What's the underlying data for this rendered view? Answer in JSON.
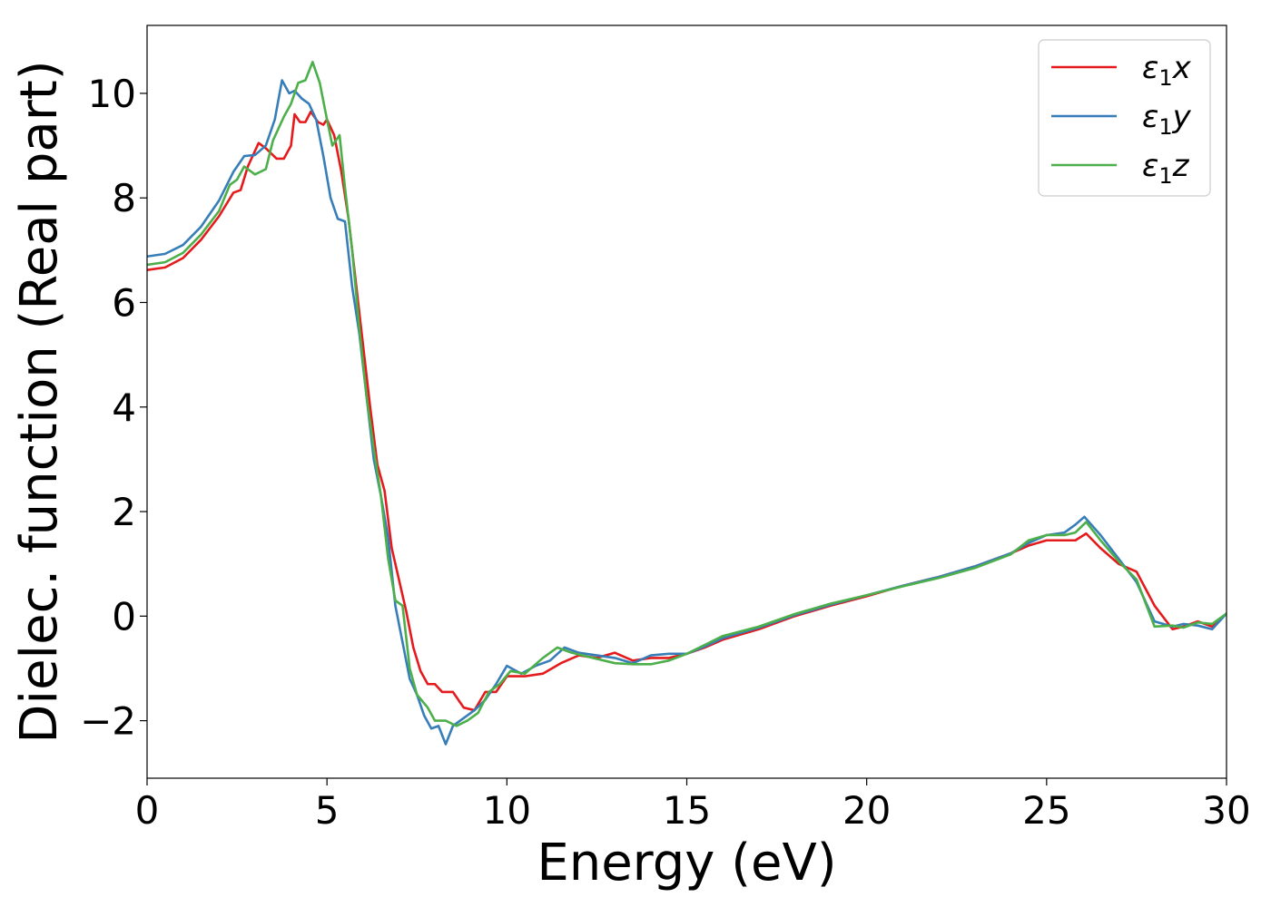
{
  "chart_data": {
    "type": "line",
    "title": "",
    "xlabel": "Energy (eV)",
    "ylabel": "Dielec. function (Real part)",
    "xlim": [
      0,
      30
    ],
    "ylim": [
      -3.1,
      11.3
    ],
    "x_ticks": [
      0,
      5,
      10,
      15,
      20,
      25,
      30
    ],
    "y_ticks": [
      -2,
      0,
      2,
      4,
      6,
      8,
      10
    ],
    "x_tick_labels": [
      "0",
      "5",
      "10",
      "15",
      "20",
      "25",
      "30"
    ],
    "y_tick_labels": [
      "−2",
      "0",
      "2",
      "4",
      "6",
      "8",
      "10"
    ],
    "grid": false,
    "legend_position": "top-right",
    "series": [
      {
        "name": "ε1x",
        "legend_main": "ε",
        "legend_sub": "1",
        "legend_tail": "x",
        "color": "#e41a1c",
        "points": [
          [
            0,
            6.62
          ],
          [
            0.5,
            6.67
          ],
          [
            1.0,
            6.85
          ],
          [
            1.5,
            7.2
          ],
          [
            2.0,
            7.65
          ],
          [
            2.4,
            8.1
          ],
          [
            2.6,
            8.15
          ],
          [
            2.8,
            8.6
          ],
          [
            3.1,
            9.05
          ],
          [
            3.3,
            8.95
          ],
          [
            3.6,
            8.75
          ],
          [
            3.8,
            8.75
          ],
          [
            4.0,
            9.0
          ],
          [
            4.1,
            9.6
          ],
          [
            4.25,
            9.45
          ],
          [
            4.4,
            9.45
          ],
          [
            4.55,
            9.65
          ],
          [
            4.75,
            9.45
          ],
          [
            4.9,
            9.4
          ],
          [
            5.0,
            9.5
          ],
          [
            5.2,
            9.2
          ],
          [
            5.4,
            8.5
          ],
          [
            5.6,
            7.6
          ],
          [
            5.8,
            6.4
          ],
          [
            6.0,
            5.2
          ],
          [
            6.2,
            4.0
          ],
          [
            6.4,
            2.9
          ],
          [
            6.6,
            2.4
          ],
          [
            6.8,
            1.3
          ],
          [
            7.0,
            0.7
          ],
          [
            7.2,
            0.1
          ],
          [
            7.4,
            -0.6
          ],
          [
            7.6,
            -1.05
          ],
          [
            7.8,
            -1.3
          ],
          [
            8.0,
            -1.3
          ],
          [
            8.2,
            -1.45
          ],
          [
            8.5,
            -1.45
          ],
          [
            8.8,
            -1.75
          ],
          [
            9.1,
            -1.8
          ],
          [
            9.4,
            -1.45
          ],
          [
            9.7,
            -1.45
          ],
          [
            10.0,
            -1.15
          ],
          [
            10.5,
            -1.15
          ],
          [
            11.0,
            -1.1
          ],
          [
            11.5,
            -0.9
          ],
          [
            12.0,
            -0.75
          ],
          [
            12.5,
            -0.8
          ],
          [
            13.0,
            -0.7
          ],
          [
            13.5,
            -0.85
          ],
          [
            14.0,
            -0.8
          ],
          [
            14.5,
            -0.8
          ],
          [
            15.0,
            -0.72
          ],
          [
            15.5,
            -0.6
          ],
          [
            16.0,
            -0.45
          ],
          [
            17.0,
            -0.25
          ],
          [
            18.0,
            0.0
          ],
          [
            19.0,
            0.2
          ],
          [
            20.0,
            0.38
          ],
          [
            21.0,
            0.58
          ],
          [
            22.0,
            0.75
          ],
          [
            23.0,
            0.95
          ],
          [
            24.0,
            1.2
          ],
          [
            24.5,
            1.35
          ],
          [
            25.0,
            1.45
          ],
          [
            25.5,
            1.45
          ],
          [
            25.8,
            1.45
          ],
          [
            26.1,
            1.58
          ],
          [
            26.5,
            1.3
          ],
          [
            27.0,
            1.0
          ],
          [
            27.5,
            0.85
          ],
          [
            28.0,
            0.2
          ],
          [
            28.5,
            -0.25
          ],
          [
            28.8,
            -0.2
          ],
          [
            29.2,
            -0.1
          ],
          [
            29.6,
            -0.2
          ],
          [
            30.0,
            0.05
          ]
        ]
      },
      {
        "name": "ε1y",
        "legend_main": "ε",
        "legend_sub": "1",
        "legend_tail": "y",
        "color": "#377eb8",
        "points": [
          [
            0,
            6.88
          ],
          [
            0.5,
            6.93
          ],
          [
            1.0,
            7.1
          ],
          [
            1.5,
            7.45
          ],
          [
            2.0,
            7.95
          ],
          [
            2.4,
            8.5
          ],
          [
            2.7,
            8.8
          ],
          [
            3.0,
            8.82
          ],
          [
            3.3,
            9.0
          ],
          [
            3.55,
            9.5
          ],
          [
            3.75,
            10.25
          ],
          [
            3.95,
            10.0
          ],
          [
            4.1,
            10.05
          ],
          [
            4.3,
            9.9
          ],
          [
            4.5,
            9.8
          ],
          [
            4.7,
            9.5
          ],
          [
            4.9,
            8.8
          ],
          [
            5.1,
            8.0
          ],
          [
            5.3,
            7.6
          ],
          [
            5.5,
            7.55
          ],
          [
            5.7,
            6.3
          ],
          [
            5.9,
            5.4
          ],
          [
            6.1,
            4.2
          ],
          [
            6.3,
            3.0
          ],
          [
            6.5,
            2.3
          ],
          [
            6.7,
            1.5
          ],
          [
            6.9,
            0.2
          ],
          [
            7.1,
            -0.5
          ],
          [
            7.3,
            -1.2
          ],
          [
            7.5,
            -1.5
          ],
          [
            7.7,
            -1.9
          ],
          [
            7.9,
            -2.15
          ],
          [
            8.1,
            -2.1
          ],
          [
            8.3,
            -2.45
          ],
          [
            8.5,
            -2.1
          ],
          [
            8.8,
            -1.95
          ],
          [
            9.1,
            -1.8
          ],
          [
            9.4,
            -1.6
          ],
          [
            9.7,
            -1.3
          ],
          [
            10.0,
            -0.95
          ],
          [
            10.4,
            -1.1
          ],
          [
            10.8,
            -0.95
          ],
          [
            11.2,
            -0.85
          ],
          [
            11.6,
            -0.6
          ],
          [
            12.0,
            -0.7
          ],
          [
            12.5,
            -0.75
          ],
          [
            13.0,
            -0.8
          ],
          [
            13.5,
            -0.9
          ],
          [
            14.0,
            -0.75
          ],
          [
            14.5,
            -0.72
          ],
          [
            15.0,
            -0.72
          ],
          [
            15.5,
            -0.58
          ],
          [
            16.0,
            -0.42
          ],
          [
            17.0,
            -0.22
          ],
          [
            18.0,
            0.02
          ],
          [
            19.0,
            0.22
          ],
          [
            20.0,
            0.4
          ],
          [
            21.0,
            0.58
          ],
          [
            22.0,
            0.75
          ],
          [
            23.0,
            0.95
          ],
          [
            24.0,
            1.2
          ],
          [
            24.5,
            1.4
          ],
          [
            25.0,
            1.55
          ],
          [
            25.5,
            1.6
          ],
          [
            25.8,
            1.75
          ],
          [
            26.05,
            1.9
          ],
          [
            26.5,
            1.55
          ],
          [
            27.0,
            1.1
          ],
          [
            27.5,
            0.65
          ],
          [
            28.0,
            -0.1
          ],
          [
            28.5,
            -0.2
          ],
          [
            28.8,
            -0.15
          ],
          [
            29.2,
            -0.18
          ],
          [
            29.6,
            -0.25
          ],
          [
            30.0,
            0.05
          ]
        ]
      },
      {
        "name": "ε1z",
        "legend_main": "ε",
        "legend_sub": "1",
        "legend_tail": "z",
        "color": "#4daf4a",
        "points": [
          [
            0,
            6.72
          ],
          [
            0.5,
            6.77
          ],
          [
            1.0,
            6.95
          ],
          [
            1.5,
            7.3
          ],
          [
            2.0,
            7.75
          ],
          [
            2.3,
            8.25
          ],
          [
            2.5,
            8.35
          ],
          [
            2.7,
            8.6
          ],
          [
            3.0,
            8.45
          ],
          [
            3.3,
            8.55
          ],
          [
            3.5,
            9.1
          ],
          [
            3.8,
            9.55
          ],
          [
            4.0,
            9.8
          ],
          [
            4.2,
            10.2
          ],
          [
            4.4,
            10.25
          ],
          [
            4.6,
            10.6
          ],
          [
            4.8,
            10.2
          ],
          [
            5.0,
            9.5
          ],
          [
            5.15,
            9.0
          ],
          [
            5.35,
            9.2
          ],
          [
            5.5,
            8.2
          ],
          [
            5.7,
            7.0
          ],
          [
            5.9,
            5.5
          ],
          [
            6.1,
            4.2
          ],
          [
            6.3,
            3.2
          ],
          [
            6.5,
            2.3
          ],
          [
            6.7,
            1.1
          ],
          [
            6.9,
            0.3
          ],
          [
            7.1,
            0.2
          ],
          [
            7.3,
            -1.0
          ],
          [
            7.5,
            -1.5
          ],
          [
            7.8,
            -1.75
          ],
          [
            8.0,
            -2.0
          ],
          [
            8.3,
            -2.0
          ],
          [
            8.6,
            -2.1
          ],
          [
            8.9,
            -2.0
          ],
          [
            9.2,
            -1.85
          ],
          [
            9.5,
            -1.45
          ],
          [
            9.8,
            -1.3
          ],
          [
            10.1,
            -1.05
          ],
          [
            10.5,
            -1.1
          ],
          [
            11.0,
            -0.8
          ],
          [
            11.4,
            -0.6
          ],
          [
            11.8,
            -0.7
          ],
          [
            12.4,
            -0.8
          ],
          [
            13.0,
            -0.9
          ],
          [
            13.5,
            -0.92
          ],
          [
            14.0,
            -0.92
          ],
          [
            14.5,
            -0.85
          ],
          [
            15.0,
            -0.72
          ],
          [
            15.5,
            -0.55
          ],
          [
            16.0,
            -0.38
          ],
          [
            17.0,
            -0.2
          ],
          [
            18.0,
            0.04
          ],
          [
            19.0,
            0.24
          ],
          [
            20.0,
            0.4
          ],
          [
            21.0,
            0.57
          ],
          [
            22.0,
            0.73
          ],
          [
            23.0,
            0.92
          ],
          [
            24.0,
            1.18
          ],
          [
            24.5,
            1.45
          ],
          [
            25.0,
            1.55
          ],
          [
            25.5,
            1.55
          ],
          [
            25.8,
            1.6
          ],
          [
            26.1,
            1.8
          ],
          [
            26.5,
            1.45
          ],
          [
            27.0,
            1.05
          ],
          [
            27.5,
            0.7
          ],
          [
            28.0,
            -0.2
          ],
          [
            28.5,
            -0.18
          ],
          [
            28.8,
            -0.22
          ],
          [
            29.2,
            -0.12
          ],
          [
            29.6,
            -0.15
          ],
          [
            30.0,
            0.05
          ]
        ]
      }
    ]
  }
}
